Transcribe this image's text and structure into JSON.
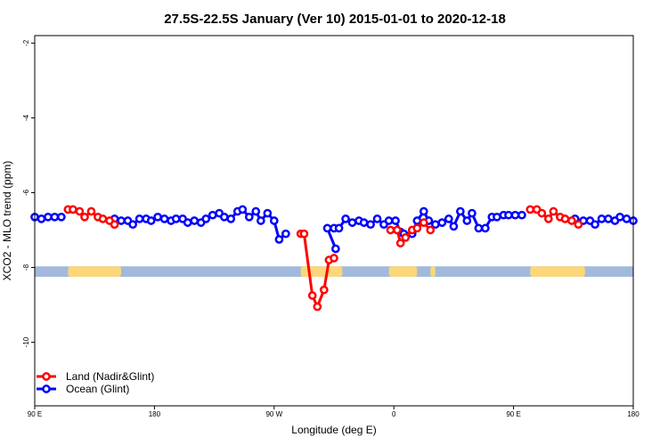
{
  "chart_data": {
    "type": "line",
    "title": "27.5S-22.5S January (Ver 10)   2015-01-01 to 2020-12-18",
    "xlabel": "Longitude (deg E)",
    "ylabel": "XCO2 - MLO trend (ppm)",
    "xlim": [
      90,
      450
    ],
    "ylim": [
      -11.7,
      -1.8
    ],
    "x_ticks": [
      {
        "value": 90,
        "label": "90 E"
      },
      {
        "value": 162,
        "label": "180"
      },
      {
        "value": 234,
        "label": "90 W"
      },
      {
        "value": 306,
        "label": "0"
      },
      {
        "value": 378,
        "label": "90 E"
      },
      {
        "value": 450,
        "label": "180"
      }
    ],
    "y_ticks": [
      {
        "value": -2,
        "label": "-2"
      },
      {
        "value": -4,
        "label": "-4"
      },
      {
        "value": -6,
        "label": "-6"
      },
      {
        "value": -8,
        "label": "-8"
      },
      {
        "value": -10,
        "label": "-10"
      }
    ],
    "land_ocean_strip": {
      "y_range": [
        -8.25,
        -7.97
      ],
      "ocean_color": "#a2b9dc",
      "land_color": "#fcd77a",
      "land_segments": [
        [
          110,
          142
        ],
        [
          250,
          275
        ],
        [
          303,
          320
        ],
        [
          328,
          331
        ],
        [
          388,
          421
        ]
      ]
    },
    "series": [
      {
        "name": "Land (Nadir&Glint)",
        "color": "#ff0000",
        "segments": [
          [
            [
              110,
              -6.45
            ],
            [
              113,
              -6.45
            ],
            [
              117,
              -6.5
            ],
            [
              120,
              -6.65
            ],
            [
              124,
              -6.5
            ],
            [
              128,
              -6.65
            ],
            [
              131,
              -6.7
            ],
            [
              135,
              -6.75
            ],
            [
              138,
              -6.85
            ]
          ],
          [
            [
              250,
              -7.1
            ],
            [
              252,
              -7.1
            ],
            [
              257,
              -8.75
            ],
            [
              260,
              -9.05
            ],
            [
              264,
              -8.6
            ],
            [
              267,
              -7.8
            ],
            [
              270,
              -7.75
            ]
          ],
          [
            [
              304,
              -7.0
            ],
            [
              308,
              -7.0
            ],
            [
              310,
              -7.35
            ],
            [
              313,
              -7.2
            ],
            [
              317,
              -7.0
            ],
            [
              320,
              -6.95
            ],
            [
              324,
              -6.8
            ],
            [
              328,
              -7.0
            ]
          ],
          [
            [
              388,
              -6.45
            ],
            [
              392,
              -6.45
            ],
            [
              395,
              -6.55
            ],
            [
              399,
              -6.7
            ],
            [
              402,
              -6.5
            ],
            [
              406,
              -6.65
            ],
            [
              409,
              -6.7
            ],
            [
              413,
              -6.75
            ],
            [
              417,
              -6.85
            ]
          ]
        ]
      },
      {
        "name": "Ocean (Glint)",
        "color": "#0000ff",
        "segments": [
          [
            [
              90,
              -6.65
            ],
            [
              94,
              -6.7
            ],
            [
              98,
              -6.65
            ],
            [
              102,
              -6.65
            ],
            [
              106,
              -6.65
            ]
          ],
          [
            [
              138,
              -6.7
            ],
            [
              142,
              -6.75
            ],
            [
              146,
              -6.75
            ],
            [
              149,
              -6.85
            ],
            [
              153,
              -6.7
            ],
            [
              157,
              -6.7
            ],
            [
              160,
              -6.75
            ],
            [
              164,
              -6.65
            ],
            [
              168,
              -6.7
            ],
            [
              172,
              -6.75
            ],
            [
              175,
              -6.7
            ],
            [
              179,
              -6.7
            ],
            [
              182,
              -6.8
            ],
            [
              186,
              -6.75
            ],
            [
              190,
              -6.8
            ],
            [
              193,
              -6.7
            ],
            [
              197,
              -6.6
            ],
            [
              201,
              -6.55
            ],
            [
              204,
              -6.65
            ],
            [
              208,
              -6.7
            ],
            [
              212,
              -6.5
            ],
            [
              215,
              -6.45
            ],
            [
              219,
              -6.65
            ],
            [
              223,
              -6.5
            ],
            [
              226,
              -6.75
            ],
            [
              230,
              -6.55
            ],
            [
              234,
              -6.75
            ],
            [
              237,
              -7.25
            ],
            [
              241,
              -7.1
            ]
          ],
          [
            [
              271,
              -7.5
            ],
            [
              266,
              -6.95
            ],
            [
              270,
              -6.95
            ],
            [
              273,
              -6.95
            ],
            [
              277,
              -6.7
            ],
            [
              281,
              -6.8
            ],
            [
              285,
              -6.75
            ],
            [
              288,
              -6.8
            ],
            [
              292,
              -6.85
            ],
            [
              296,
              -6.7
            ],
            [
              300,
              -6.85
            ],
            [
              303,
              -6.75
            ],
            [
              307,
              -6.75
            ],
            [
              310,
              -7.05
            ],
            [
              312,
              -7.1
            ]
          ],
          [
            [
              317,
              -7.1
            ],
            [
              320,
              -6.75
            ],
            [
              324,
              -6.5
            ],
            [
              327,
              -6.75
            ],
            [
              331,
              -6.85
            ],
            [
              335,
              -6.8
            ],
            [
              339,
              -6.7
            ],
            [
              342,
              -6.9
            ],
            [
              346,
              -6.5
            ],
            [
              350,
              -6.75
            ],
            [
              353,
              -6.55
            ],
            [
              357,
              -6.95
            ],
            [
              361,
              -6.95
            ],
            [
              365,
              -6.65
            ],
            [
              368,
              -6.65
            ],
            [
              372,
              -6.6
            ],
            [
              375,
              -6.6
            ],
            [
              379,
              -6.6
            ],
            [
              383,
              -6.6
            ]
          ],
          [
            [
              415,
              -6.7
            ],
            [
              420,
              -6.75
            ],
            [
              424,
              -6.75
            ],
            [
              427,
              -6.85
            ],
            [
              431,
              -6.7
            ],
            [
              435,
              -6.7
            ],
            [
              439,
              -6.75
            ],
            [
              442,
              -6.65
            ],
            [
              446,
              -6.7
            ],
            [
              450,
              -6.75
            ]
          ]
        ]
      }
    ],
    "legend_placement": "bottom-left",
    "grid": false
  }
}
